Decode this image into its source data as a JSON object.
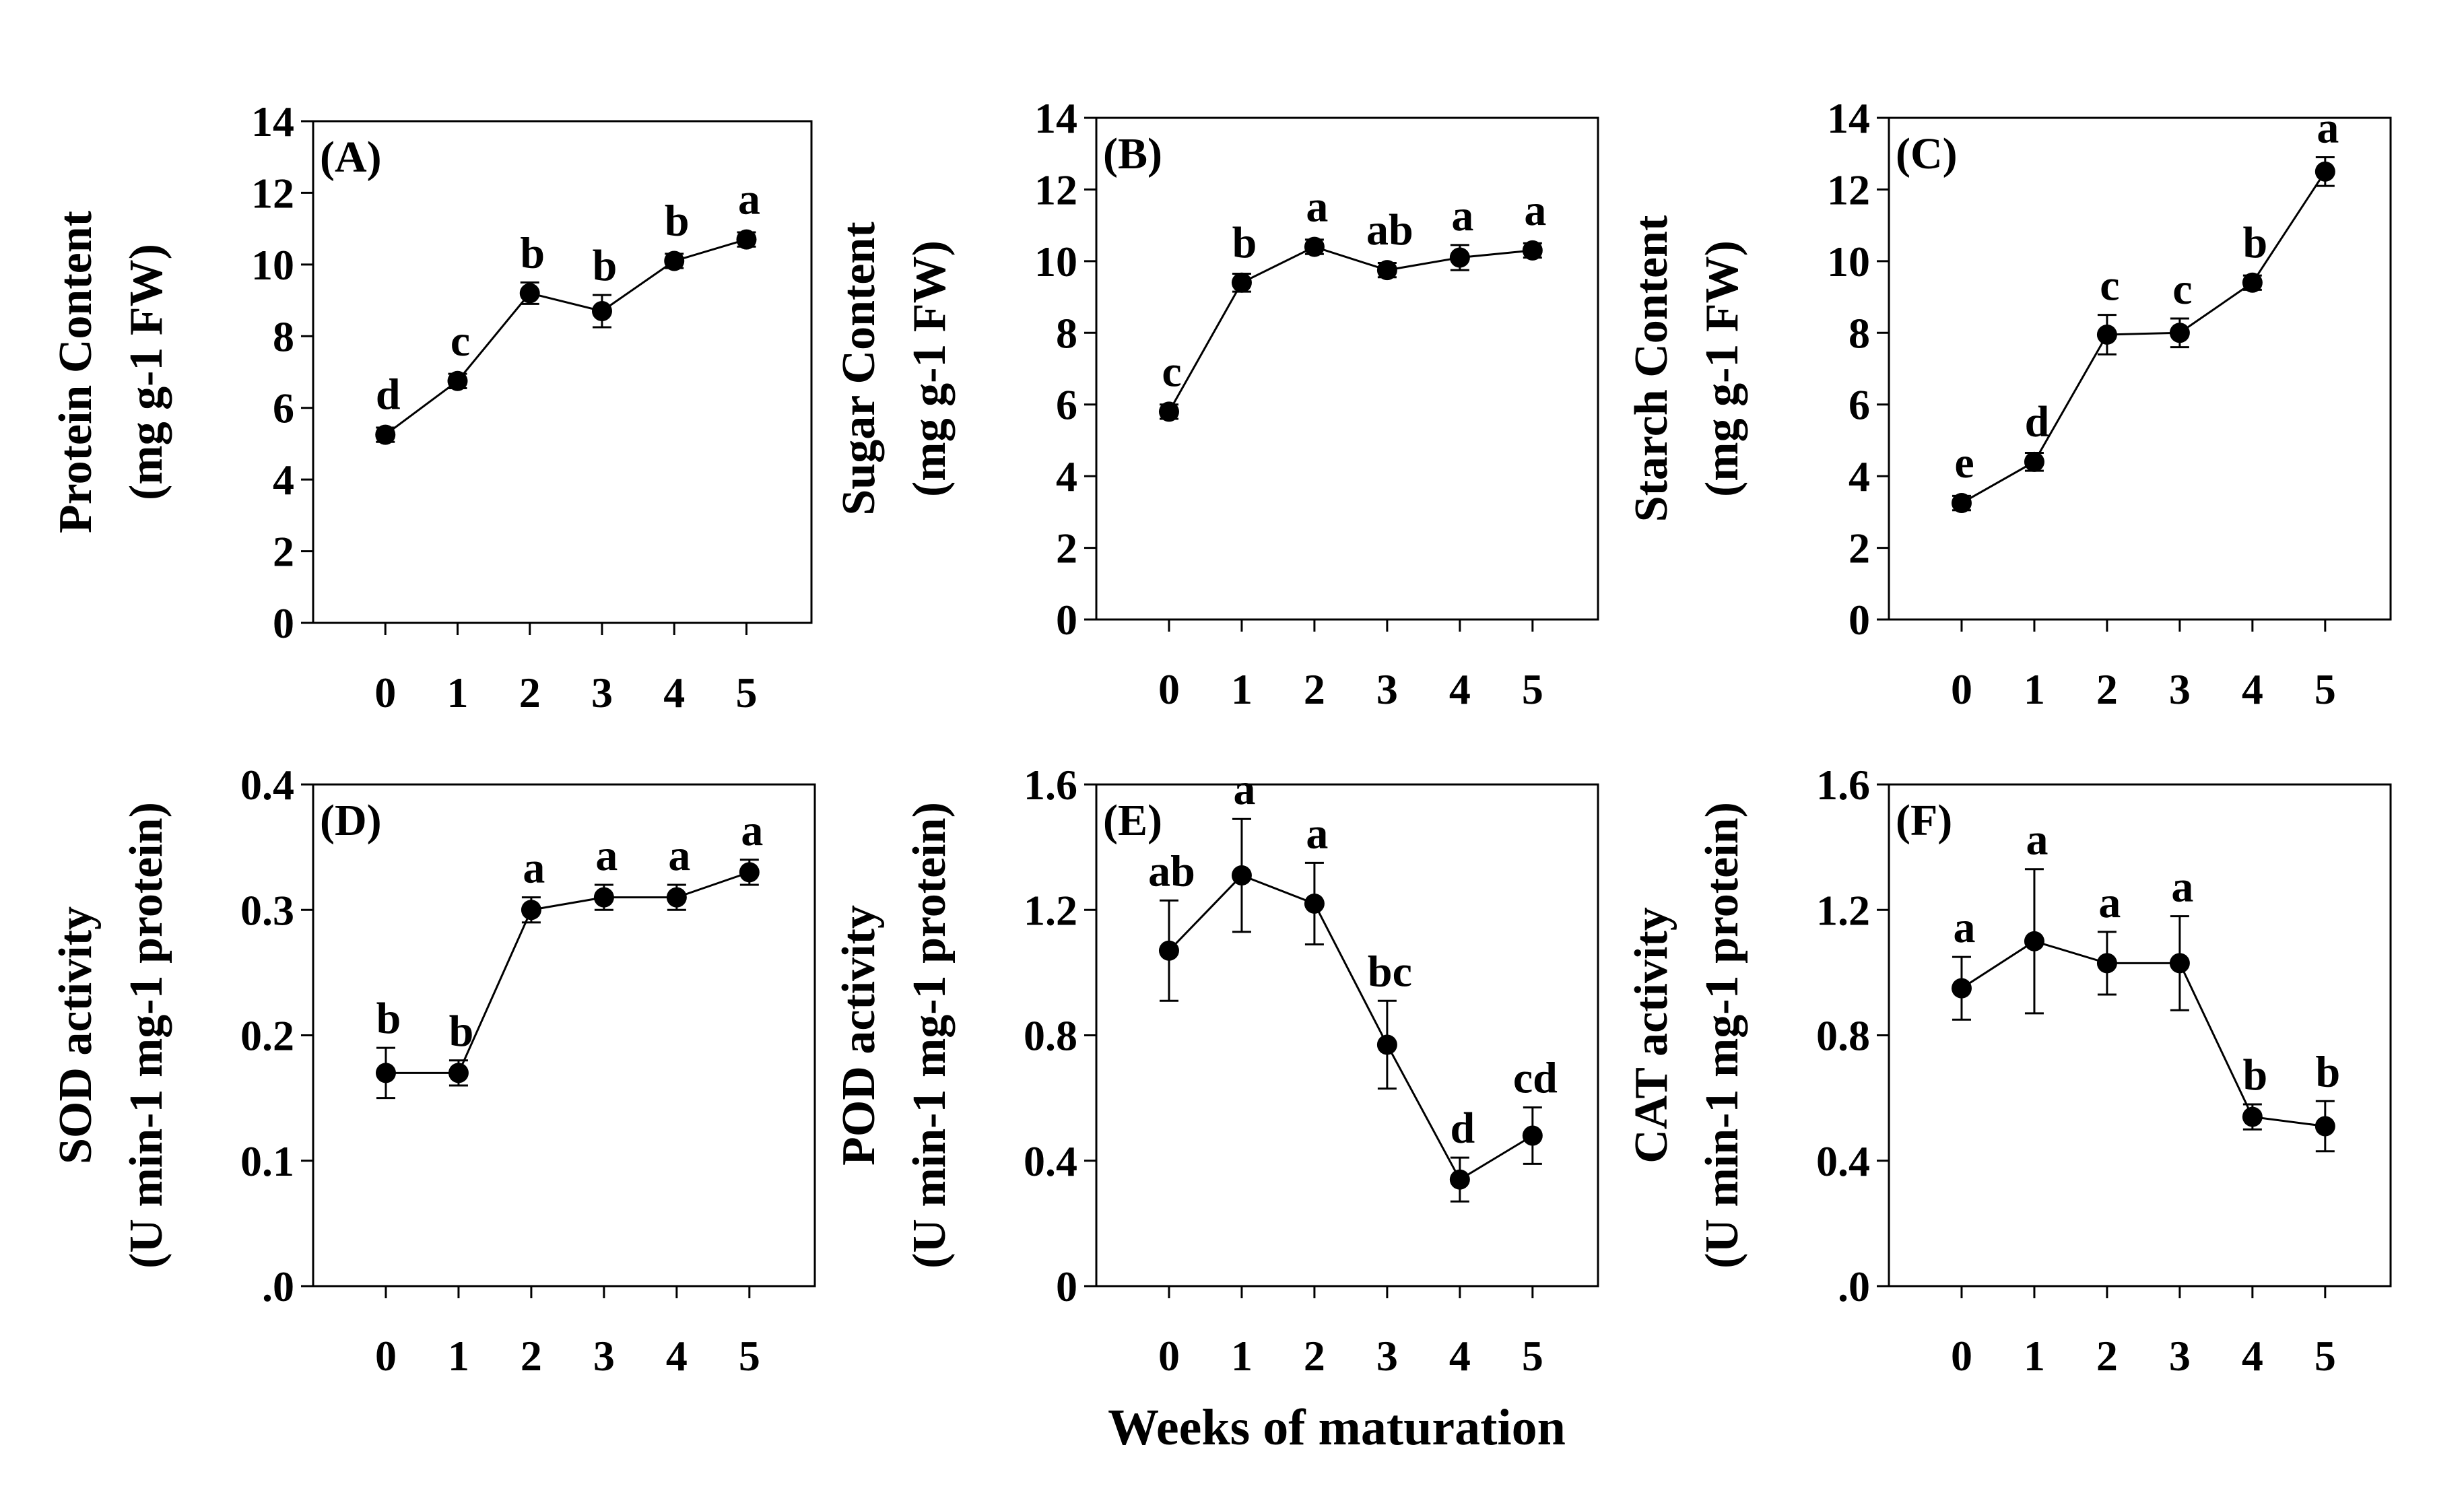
{
  "chart_data": [
    {
      "type": "line",
      "panel": "(A)",
      "ylabel_lines": [
        "Protein Content",
        "(mg g-1 FW)"
      ],
      "x": [
        0,
        1,
        2,
        3,
        4,
        5
      ],
      "values": [
        5.25,
        6.75,
        9.2,
        8.7,
        10.1,
        10.7
      ],
      "errors": [
        0.2,
        0.2,
        0.3,
        0.45,
        0.2,
        0.2
      ],
      "letters": [
        "d",
        "c",
        "b",
        "b",
        "b",
        "a"
      ],
      "ylim": [
        0,
        14
      ],
      "yticks": [
        0,
        2,
        4,
        6,
        8,
        10,
        12,
        14
      ],
      "ytick_labels": [
        "0",
        "2",
        "4",
        "6",
        "8",
        "10",
        "12",
        "14"
      ],
      "xtick_labels": [
        "0",
        "1",
        "2",
        "3",
        "4",
        "5"
      ]
    },
    {
      "type": "line",
      "panel": "(B)",
      "ylabel_lines": [
        "Sugar Content",
        "(mg g-1 FW)"
      ],
      "x": [
        0,
        1,
        2,
        3,
        4,
        5
      ],
      "values": [
        5.8,
        9.4,
        10.4,
        9.75,
        10.1,
        10.3
      ],
      "errors": [
        0.2,
        0.25,
        0.2,
        0.2,
        0.35,
        0.2
      ],
      "letters": [
        "c",
        "b",
        "a",
        "ab",
        "a",
        "a"
      ],
      "ylim": [
        0,
        14
      ],
      "yticks": [
        0,
        2,
        4,
        6,
        8,
        10,
        12,
        14
      ],
      "ytick_labels": [
        "0",
        "2",
        "4",
        "6",
        "8",
        "10",
        "12",
        "14"
      ],
      "xtick_labels": [
        "0",
        "1",
        "2",
        "3",
        "4",
        "5"
      ]
    },
    {
      "type": "line",
      "panel": "(C)",
      "ylabel_lines": [
        "Starch Content",
        "(mg g-1 FW)"
      ],
      "x": [
        0,
        1,
        2,
        3,
        4,
        5
      ],
      "values": [
        3.25,
        4.4,
        7.95,
        8.0,
        9.4,
        12.5
      ],
      "errors": [
        0.2,
        0.25,
        0.55,
        0.4,
        0.2,
        0.4
      ],
      "letters": [
        "e",
        "d",
        "c",
        "c",
        "b",
        "a"
      ],
      "ylim": [
        0,
        14
      ],
      "yticks": [
        0,
        2,
        4,
        6,
        8,
        10,
        12,
        14
      ],
      "ytick_labels": [
        "0",
        "2",
        "4",
        "6",
        "8",
        "10",
        "12",
        "14"
      ],
      "xtick_labels": [
        "0",
        "1",
        "2",
        "3",
        "4",
        "5"
      ]
    },
    {
      "type": "line",
      "panel": "(D)",
      "ylabel_lines": [
        "SOD activity",
        "(U min-1 mg-1 protein)"
      ],
      "x": [
        0,
        1,
        2,
        3,
        4,
        5
      ],
      "values": [
        0.17,
        0.17,
        0.3,
        0.31,
        0.31,
        0.33
      ],
      "errors": [
        0.02,
        0.01,
        0.01,
        0.01,
        0.01,
        0.01
      ],
      "letters": [
        "b",
        "b",
        "a",
        "a",
        "a",
        "a"
      ],
      "ylim": [
        0,
        0.4
      ],
      "yticks": [
        0,
        0.1,
        0.2,
        0.3,
        0.4
      ],
      "ytick_labels": [
        ".0",
        "0.1",
        "0.2",
        "0.3",
        "0.4"
      ],
      "xtick_labels": [
        "0",
        "1",
        "2",
        "3",
        "4",
        "5"
      ]
    },
    {
      "type": "line",
      "panel": "(E)",
      "ylabel_lines": [
        "POD activity",
        "(U min-1 mg-1 protein)"
      ],
      "x": [
        0,
        1,
        2,
        3,
        4,
        5
      ],
      "values": [
        1.07,
        1.31,
        1.22,
        0.77,
        0.34,
        0.48
      ],
      "errors": [
        0.16,
        0.18,
        0.13,
        0.14,
        0.07,
        0.09
      ],
      "letters": [
        "ab",
        "a",
        "a",
        "bc",
        "d",
        "cd"
      ],
      "ylim": [
        0,
        1.6
      ],
      "yticks": [
        0,
        0.4,
        0.8,
        1.2,
        1.6
      ],
      "ytick_labels": [
        "0",
        "0.4",
        "0.8",
        "1.2",
        "1.6"
      ],
      "xtick_labels": [
        "0",
        "1",
        "2",
        "3",
        "4",
        "5"
      ]
    },
    {
      "type": "line",
      "panel": "(F)",
      "ylabel_lines": [
        "CAT activity",
        "(U min-1 mg-1 protein)"
      ],
      "x": [
        0,
        1,
        2,
        3,
        4,
        5
      ],
      "values": [
        0.95,
        1.1,
        1.03,
        1.03,
        0.54,
        0.51
      ],
      "errors": [
        0.1,
        0.23,
        0.1,
        0.15,
        0.04,
        0.08
      ],
      "letters": [
        "a",
        "a",
        "a",
        "a",
        "b",
        "b"
      ],
      "ylim": [
        0,
        1.6
      ],
      "yticks": [
        0,
        0.4,
        0.8,
        1.2,
        1.6
      ],
      "ytick_labels": [
        ".0",
        "0.4",
        "0.8",
        "1.2",
        "1.6"
      ],
      "xtick_labels": [
        "0",
        "1",
        "2",
        "3",
        "4",
        "5"
      ]
    }
  ],
  "xlabel": "Weeks of maturation"
}
